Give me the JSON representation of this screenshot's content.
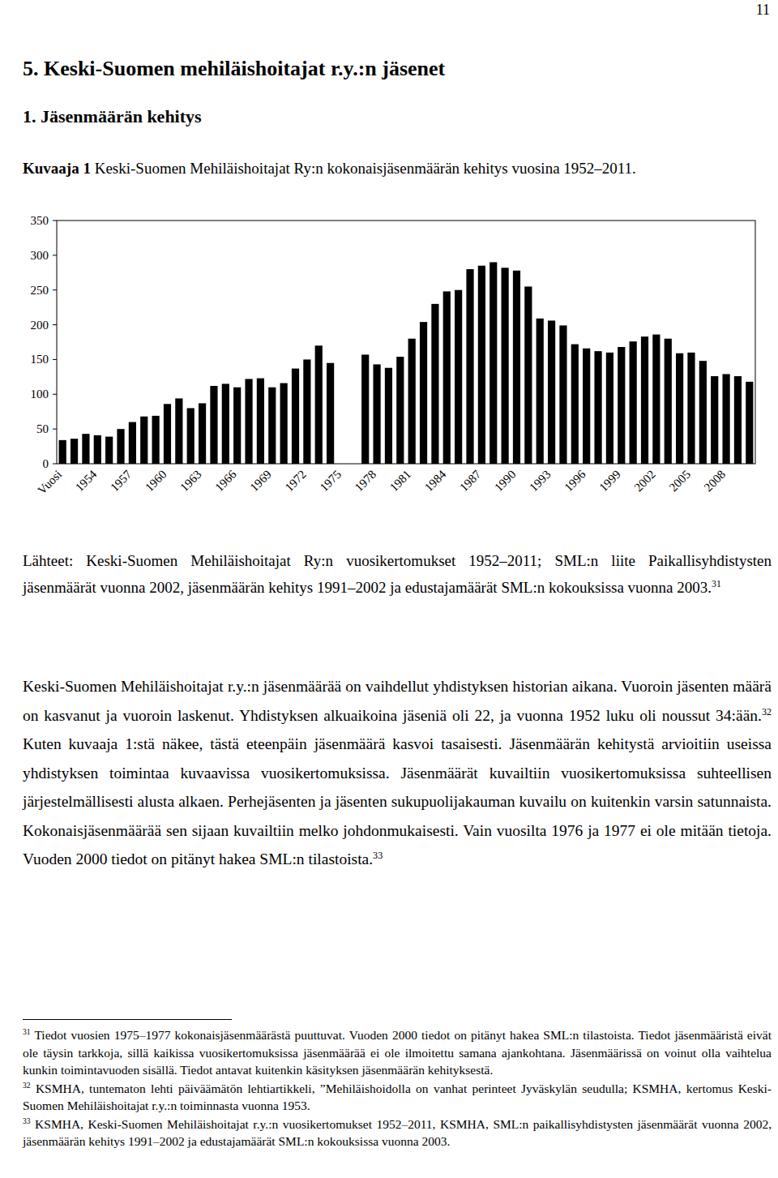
{
  "page_number": "11",
  "heading": "5. Keski-Suomen mehiläishoitajat r.y.:n jäsenet",
  "subheading": "1. Jäsenmäärän kehitys",
  "caption": {
    "label": "Kuvaaja 1",
    "text": "Keski-Suomen Mehiläishoitajat Ry:n kokonaisjäsenmäärän kehitys vuosina 1952–2011."
  },
  "chart_data": {
    "type": "bar",
    "categories": [
      "Vuosi",
      null,
      null,
      "1954",
      null,
      null,
      "1957",
      null,
      null,
      "1960",
      null,
      null,
      "1963",
      null,
      null,
      "1966",
      null,
      null,
      "1969",
      null,
      null,
      "1972",
      null,
      null,
      "1975",
      null,
      null,
      "1978",
      null,
      null,
      "1981",
      null,
      null,
      "1984",
      null,
      null,
      "1987",
      null,
      null,
      "1990",
      null,
      null,
      "1993",
      null,
      null,
      "1996",
      null,
      null,
      "1999",
      null,
      null,
      "2002",
      null,
      null,
      "2005",
      null,
      null,
      "2008",
      null,
      null
    ],
    "values": [
      34,
      36,
      43,
      41,
      39,
      50,
      60,
      68,
      69,
      86,
      94,
      80,
      87,
      112,
      115,
      110,
      122,
      123,
      110,
      116,
      137,
      150,
      170,
      145,
      null,
      null,
      157,
      143,
      138,
      154,
      180,
      204,
      230,
      248,
      250,
      280,
      285,
      290,
      282,
      278,
      255,
      209,
      206,
      199,
      172,
      166,
      162,
      160,
      168,
      176,
      183,
      186,
      180,
      159,
      160,
      148,
      126,
      129,
      126,
      118
    ],
    "color": "#000000",
    "ylim": [
      0,
      350
    ],
    "yticks": [
      0,
      50,
      100,
      150,
      200,
      250,
      300,
      350
    ],
    "grid": false
  },
  "sources": [
    {
      "text": "Lähteet: Keski-Suomen Mehiläishoitajat Ry:n vuosikertomukset 1952–2011; SML:n liite Paikallisyhdistysten jäsenmäärät vuonna 2002, jäsenmäärän kehitys 1991–2002 ja edustajamäärät SML:n kokouksissa vuonna 2003."
    },
    {
      "sup": "31"
    }
  ],
  "body": [
    {
      "text": "Keski-Suomen Mehiläishoitajat r.y.:n jäsenmäärää on vaihdellut yhdistyksen historian aikana. Vuoroin jäsenten määrä on kasvanut ja vuoroin laskenut. Yhdistyksen alkuaikoina jäseniä oli 22, ja vuonna 1952 luku oli noussut 34:ään."
    },
    {
      "sup": "32"
    },
    {
      "text": " Kuten kuvaaja 1:stä näkee, tästä eteenpäin jäsenmäärä kasvoi tasaisesti. Jäsenmäärän kehitystä arvioitiin useissa yhdistyksen toimintaa kuvaavissa vuosikertomuksissa. Jäsenmäärät kuvailtiin vuosikertomuksissa suhteellisen järjestelmällisesti alusta alkaen. Perhejäsenten ja jäsenten sukupuolijakauman kuvailu on kuitenkin varsin satunnaista. Kokonaisjäsenmäärää sen sijaan kuvailtiin melko johdonmukaisesti. Vain vuosilta 1976 ja 1977 ei ole mitään tietoja. Vuoden 2000 tiedot on pitänyt hakea SML:n tilastoista."
    },
    {
      "sup": "33"
    }
  ],
  "footnotes": [
    {
      "number": "31",
      "text": "Tiedot vuosien 1975–1977 kokonaisjäsenmäärästä puuttuvat. Vuoden 2000 tiedot on pitänyt hakea SML:n tilastoista. Tiedot jäsenmääristä eivät ole täysin tarkkoja, sillä kaikissa vuosikertomuksissa jäsenmäärää ei ole ilmoitettu samana ajankohtana. Jäsenmäärissä on voinut olla vaihtelua kunkin toimintavuoden sisällä. Tiedot antavat kuitenkin käsityksen jäsenmäärän kehityksestä."
    },
    {
      "number": "32",
      "text": "KSMHA, tuntematon lehti päiväämätön lehtiartikkeli, ”Mehiläishoidolla on vanhat perinteet Jyväskylän seudulla; KSMHA, kertomus Keski-Suomen Mehiläishoitajat r.y.:n toiminnasta vuonna 1953."
    },
    {
      "number": "33",
      "text": "KSMHA, Keski-Suomen Mehiläishoitajat r.y.:n vuosikertomukset 1952–2011, KSMHA, SML:n paikallisyhdistysten jäsenmäärät vuonna 2002, jäsenmäärän kehitys 1991–2002 ja edustajamäärät SML:n kokouksissa vuonna 2003."
    }
  ]
}
